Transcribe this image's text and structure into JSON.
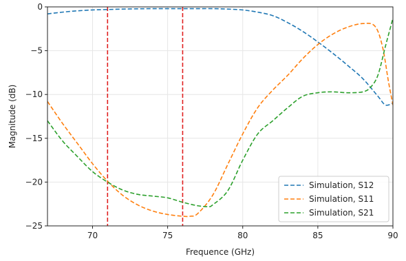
{
  "chart_data": {
    "type": "line",
    "title": "",
    "xlabel": "Frequence (GHz)",
    "ylabel": "Magnitude (dB)",
    "xlim": [
      67,
      90
    ],
    "ylim": [
      -25,
      0
    ],
    "xticks": [
      70,
      75,
      80,
      85,
      90
    ],
    "yticks": [
      0,
      -5,
      -10,
      -15,
      -20,
      -25
    ],
    "xtick_labels": [
      "70",
      "75",
      "80",
      "85",
      "90"
    ],
    "ytick_labels": [
      "0",
      "−5",
      "−10",
      "−15",
      "−20",
      "−25"
    ],
    "grid": true,
    "legend_position": "lower-right",
    "vlines": [
      {
        "x": 71,
        "color": "#e02020"
      },
      {
        "x": 76,
        "color": "#e02020"
      }
    ],
    "series": [
      {
        "name": "Simulation, S12",
        "color": "#1f77b4",
        "x": [
          67,
          68,
          69,
          70,
          71,
          72,
          73,
          74,
          75,
          76,
          77,
          78,
          79,
          80,
          81,
          82,
          83,
          84,
          85,
          86,
          87,
          88,
          89,
          89.5,
          90
        ],
        "y": [
          -0.8,
          -0.6,
          -0.45,
          -0.35,
          -0.3,
          -0.25,
          -0.22,
          -0.2,
          -0.2,
          -0.2,
          -0.2,
          -0.2,
          -0.25,
          -0.35,
          -0.6,
          -1.0,
          -1.8,
          -2.8,
          -4.0,
          -5.3,
          -6.7,
          -8.2,
          -10.2,
          -11.2,
          -11.0
        ]
      },
      {
        "name": "Simulation, S11",
        "color": "#ff7f0e",
        "x": [
          67,
          68,
          69,
          70,
          71,
          72,
          73,
          74,
          75,
          76,
          76.5,
          77,
          78,
          79,
          80,
          81,
          82,
          83,
          84,
          85,
          86,
          87,
          88,
          88.8,
          89.3,
          89.7,
          90
        ],
        "y": [
          -10.8,
          -13.3,
          -15.6,
          -17.9,
          -19.9,
          -21.5,
          -22.6,
          -23.3,
          -23.7,
          -23.9,
          -23.9,
          -23.6,
          -21.5,
          -18.0,
          -14.5,
          -11.5,
          -9.5,
          -7.8,
          -5.9,
          -4.3,
          -3.1,
          -2.3,
          -1.9,
          -2.2,
          -4.5,
          -8.5,
          -11.2
        ]
      },
      {
        "name": "Simulation, S21",
        "color": "#2ca02c",
        "x": [
          67,
          68,
          69,
          70,
          71,
          72,
          73,
          74,
          75,
          76,
          77,
          77.7,
          78,
          79,
          80,
          81,
          82,
          83,
          84,
          85,
          86,
          87,
          88,
          88.5,
          89,
          89.5,
          90
        ],
        "y": [
          -13.0,
          -15.3,
          -17.1,
          -18.8,
          -20.0,
          -20.9,
          -21.4,
          -21.6,
          -21.8,
          -22.3,
          -22.7,
          -22.8,
          -22.6,
          -21.0,
          -17.5,
          -14.5,
          -13.0,
          -11.5,
          -10.2,
          -9.8,
          -9.7,
          -9.8,
          -9.7,
          -9.2,
          -7.8,
          -4.5,
          -1.3
        ]
      }
    ]
  }
}
